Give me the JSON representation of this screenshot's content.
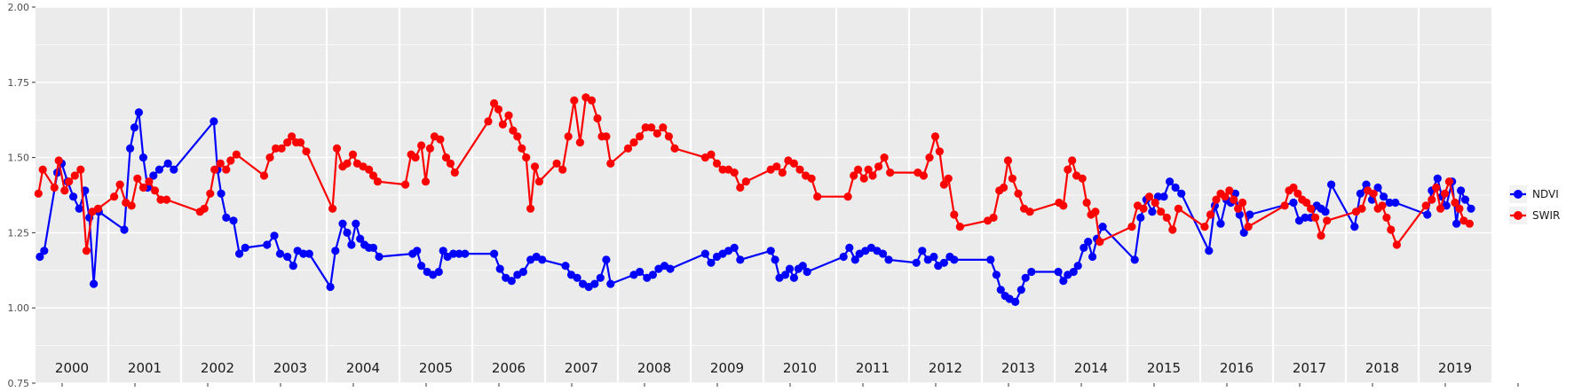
{
  "chart_data": {
    "type": "line",
    "title": "",
    "xlabel": "",
    "ylabel": "",
    "xlim": [
      2000,
      2020
    ],
    "ylim": [
      0.75,
      2.0
    ],
    "yticks": [
      0.75,
      1.0,
      1.25,
      1.5,
      1.75,
      2.0
    ],
    "ytick_labels": [
      "0.75",
      "1.00",
      "1.25",
      "1.50",
      "1.75",
      "2.00"
    ],
    "year_labels": [
      "2000",
      "2001",
      "2002",
      "2003",
      "2004",
      "2005",
      "2006",
      "2007",
      "2008",
      "2009",
      "2010",
      "2011",
      "2012",
      "2013",
      "2014",
      "2015",
      "2016",
      "2017",
      "2018",
      "2019"
    ],
    "grid": true,
    "legend_position": "right",
    "colors": {
      "NDVI": "#0000ff",
      "SWIR": "#ff0000",
      "panel_bg": "#ebebeb",
      "grid": "#ffffff"
    },
    "series": [
      {
        "name": "NDVI",
        "color": "#0000ff",
        "x": [
          2000.06,
          2000.12,
          2000.3,
          2000.36,
          2000.44,
          2000.52,
          2000.6,
          2000.68,
          2000.74,
          2000.8,
          2000.87,
          2001.22,
          2001.3,
          2001.36,
          2001.42,
          2001.48,
          2001.54,
          2001.62,
          2001.7,
          2001.82,
          2001.9,
          2002.45,
          2002.5,
          2002.55,
          2002.62,
          2002.72,
          2002.8,
          2002.88,
          2003.18,
          2003.28,
          2003.36,
          2003.46,
          2003.54,
          2003.6,
          2003.68,
          2003.76,
          2004.05,
          2004.12,
          2004.22,
          2004.28,
          2004.34,
          2004.4,
          2004.46,
          2004.52,
          2004.58,
          2004.64,
          2004.72,
          2005.18,
          2005.24,
          2005.3,
          2005.38,
          2005.46,
          2005.54,
          2005.6,
          2005.66,
          2005.74,
          2005.82,
          2005.9,
          2006.3,
          2006.38,
          2006.46,
          2006.54,
          2006.62,
          2006.7,
          2006.8,
          2006.88,
          2006.96,
          2007.28,
          2007.36,
          2007.44,
          2007.52,
          2007.6,
          2007.68,
          2007.76,
          2007.84,
          2007.9,
          2008.22,
          2008.3,
          2008.4,
          2008.48,
          2008.56,
          2008.64,
          2008.72,
          2009.2,
          2009.28,
          2009.36,
          2009.44,
          2009.52,
          2009.6,
          2009.68,
          2010.1,
          2010.16,
          2010.22,
          2010.3,
          2010.36,
          2010.42,
          2010.48,
          2010.54,
          2010.6,
          2011.1,
          2011.18,
          2011.26,
          2011.32,
          2011.4,
          2011.48,
          2011.56,
          2011.64,
          2011.72,
          2012.1,
          2012.18,
          2012.26,
          2012.34,
          2012.4,
          2012.48,
          2012.56,
          2012.62,
          2013.12,
          2013.2,
          2013.26,
          2013.32,
          2013.38,
          2013.46,
          2013.54,
          2013.6,
          2013.68,
          2014.05,
          2014.12,
          2014.18,
          2014.26,
          2014.32,
          2014.4,
          2014.46,
          2014.52,
          2014.58,
          2014.66,
          2015.1,
          2015.18,
          2015.26,
          2015.34,
          2015.42,
          2015.5,
          2015.58,
          2015.66,
          2015.74,
          2016.12,
          2016.2,
          2016.28,
          2016.36,
          2016.42,
          2016.48,
          2016.54,
          2016.6,
          2016.68,
          2017.28,
          2017.36,
          2017.44,
          2017.52,
          2017.6,
          2017.66,
          2017.72,
          2017.8,
          2018.12,
          2018.2,
          2018.28,
          2018.36,
          2018.44,
          2018.52,
          2018.6,
          2018.68,
          2019.12,
          2019.18,
          2019.26,
          2019.32,
          2019.38,
          2019.46,
          2019.52,
          2019.58,
          2019.64,
          2019.72
        ],
        "y": [
          1.17,
          1.19,
          1.45,
          1.48,
          1.42,
          1.37,
          1.33,
          1.39,
          1.3,
          1.08,
          1.32,
          1.26,
          1.53,
          1.6,
          1.65,
          1.5,
          1.4,
          1.44,
          1.46,
          1.48,
          1.46,
          1.62,
          1.46,
          1.38,
          1.3,
          1.29,
          1.18,
          1.2,
          1.21,
          1.24,
          1.18,
          1.17,
          1.14,
          1.19,
          1.18,
          1.18,
          1.07,
          1.19,
          1.28,
          1.25,
          1.21,
          1.28,
          1.23,
          1.21,
          1.2,
          1.2,
          1.17,
          1.18,
          1.19,
          1.14,
          1.12,
          1.11,
          1.12,
          1.19,
          1.17,
          1.18,
          1.18,
          1.18,
          1.18,
          1.13,
          1.1,
          1.09,
          1.11,
          1.12,
          1.16,
          1.17,
          1.16,
          1.14,
          1.11,
          1.1,
          1.08,
          1.07,
          1.08,
          1.1,
          1.16,
          1.08,
          1.11,
          1.12,
          1.1,
          1.11,
          1.13,
          1.14,
          1.13,
          1.18,
          1.15,
          1.17,
          1.18,
          1.19,
          1.2,
          1.16,
          1.19,
          1.16,
          1.1,
          1.11,
          1.13,
          1.1,
          1.13,
          1.14,
          1.12,
          1.17,
          1.2,
          1.16,
          1.18,
          1.19,
          1.2,
          1.19,
          1.18,
          1.16,
          1.15,
          1.19,
          1.16,
          1.17,
          1.14,
          1.15,
          1.17,
          1.16,
          1.16,
          1.11,
          1.06,
          1.04,
          1.03,
          1.02,
          1.06,
          1.1,
          1.12,
          1.12,
          1.09,
          1.11,
          1.12,
          1.14,
          1.2,
          1.22,
          1.17,
          1.23,
          1.27,
          1.16,
          1.3,
          1.36,
          1.32,
          1.37,
          1.37,
          1.42,
          1.4,
          1.38,
          1.19,
          1.34,
          1.28,
          1.36,
          1.35,
          1.38,
          1.31,
          1.25,
          1.31,
          1.35,
          1.29,
          1.3,
          1.3,
          1.34,
          1.33,
          1.32,
          1.41,
          1.27,
          1.38,
          1.41,
          1.36,
          1.4,
          1.37,
          1.35,
          1.35,
          1.31,
          1.39,
          1.43,
          1.37,
          1.34,
          1.42,
          1.28,
          1.39,
          1.36,
          1.33
        ]
      },
      {
        "name": "SWIR",
        "color": "#ff0000",
        "x": [
          2000.04,
          2000.1,
          2000.26,
          2000.32,
          2000.4,
          2000.46,
          2000.54,
          2000.62,
          2000.7,
          2000.78,
          2000.86,
          2001.08,
          2001.16,
          2001.24,
          2001.32,
          2001.4,
          2001.48,
          2001.56,
          2001.64,
          2001.72,
          2001.8,
          2002.26,
          2002.32,
          2002.4,
          2002.46,
          2002.54,
          2002.62,
          2002.68,
          2002.76,
          2003.14,
          2003.22,
          2003.3,
          2003.38,
          2003.46,
          2003.52,
          2003.58,
          2003.64,
          2003.72,
          2004.08,
          2004.14,
          2004.22,
          2004.28,
          2004.36,
          2004.42,
          2004.5,
          2004.58,
          2004.64,
          2004.7,
          2005.08,
          2005.16,
          2005.22,
          2005.3,
          2005.36,
          2005.42,
          2005.48,
          2005.56,
          2005.64,
          2005.7,
          2005.76,
          2006.22,
          2006.3,
          2006.36,
          2006.42,
          2006.5,
          2006.56,
          2006.62,
          2006.68,
          2006.74,
          2006.8,
          2006.86,
          2006.92,
          2007.16,
          2007.24,
          2007.32,
          2007.4,
          2007.48,
          2007.56,
          2007.64,
          2007.72,
          2007.78,
          2007.84,
          2007.9,
          2008.14,
          2008.22,
          2008.3,
          2008.38,
          2008.46,
          2008.54,
          2008.62,
          2008.7,
          2008.78,
          2009.2,
          2009.28,
          2009.36,
          2009.44,
          2009.52,
          2009.6,
          2009.68,
          2009.76,
          2010.1,
          2010.18,
          2010.26,
          2010.34,
          2010.42,
          2010.5,
          2010.58,
          2010.66,
          2010.74,
          2011.16,
          2011.24,
          2011.3,
          2011.38,
          2011.44,
          2011.5,
          2011.58,
          2011.66,
          2011.74,
          2012.12,
          2012.2,
          2012.28,
          2012.36,
          2012.42,
          2012.48,
          2012.54,
          2012.62,
          2012.7,
          2013.08,
          2013.16,
          2013.24,
          2013.3,
          2013.36,
          2013.42,
          2013.5,
          2013.58,
          2013.66,
          2014.06,
          2014.12,
          2014.18,
          2014.24,
          2014.3,
          2014.38,
          2014.44,
          2014.5,
          2014.56,
          2014.62,
          2015.06,
          2015.14,
          2015.22,
          2015.3,
          2015.38,
          2015.46,
          2015.54,
          2015.62,
          2015.7,
          2016.06,
          2016.14,
          2016.22,
          2016.28,
          2016.34,
          2016.4,
          2016.46,
          2016.52,
          2016.58,
          2016.66,
          2017.16,
          2017.22,
          2017.28,
          2017.34,
          2017.4,
          2017.46,
          2017.52,
          2017.58,
          2017.66,
          2017.74,
          2018.14,
          2018.22,
          2018.3,
          2018.38,
          2018.44,
          2018.5,
          2018.56,
          2018.62,
          2018.7,
          2019.1,
          2019.18,
          2019.24,
          2019.3,
          2019.36,
          2019.42,
          2019.5,
          2019.56,
          2019.62,
          2019.7
        ],
        "y": [
          1.38,
          1.46,
          1.4,
          1.49,
          1.39,
          1.42,
          1.44,
          1.46,
          1.19,
          1.32,
          1.33,
          1.37,
          1.41,
          1.35,
          1.34,
          1.43,
          1.4,
          1.42,
          1.39,
          1.36,
          1.36,
          1.32,
          1.33,
          1.38,
          1.46,
          1.48,
          1.46,
          1.49,
          1.51,
          1.44,
          1.5,
          1.53,
          1.53,
          1.55,
          1.57,
          1.55,
          1.55,
          1.52,
          1.33,
          1.53,
          1.47,
          1.48,
          1.51,
          1.48,
          1.47,
          1.46,
          1.44,
          1.42,
          1.41,
          1.51,
          1.5,
          1.54,
          1.42,
          1.53,
          1.57,
          1.56,
          1.5,
          1.48,
          1.45,
          1.62,
          1.68,
          1.66,
          1.61,
          1.64,
          1.59,
          1.57,
          1.53,
          1.5,
          1.33,
          1.47,
          1.42,
          1.48,
          1.46,
          1.57,
          1.69,
          1.55,
          1.7,
          1.69,
          1.63,
          1.57,
          1.57,
          1.48,
          1.53,
          1.55,
          1.57,
          1.6,
          1.6,
          1.58,
          1.6,
          1.57,
          1.53,
          1.5,
          1.51,
          1.48,
          1.46,
          1.46,
          1.45,
          1.4,
          1.42,
          1.46,
          1.47,
          1.45,
          1.49,
          1.48,
          1.46,
          1.44,
          1.43,
          1.37,
          1.37,
          1.44,
          1.46,
          1.43,
          1.46,
          1.44,
          1.47,
          1.5,
          1.45,
          1.45,
          1.44,
          1.5,
          1.57,
          1.52,
          1.41,
          1.43,
          1.31,
          1.27,
          1.29,
          1.3,
          1.39,
          1.4,
          1.49,
          1.43,
          1.38,
          1.33,
          1.32,
          1.35,
          1.34,
          1.46,
          1.49,
          1.44,
          1.43,
          1.35,
          1.31,
          1.32,
          1.22,
          1.27,
          1.34,
          1.33,
          1.37,
          1.35,
          1.32,
          1.3,
          1.26,
          1.33,
          1.27,
          1.31,
          1.36,
          1.38,
          1.37,
          1.39,
          1.36,
          1.33,
          1.35,
          1.27,
          1.34,
          1.39,
          1.4,
          1.38,
          1.36,
          1.35,
          1.33,
          1.3,
          1.24,
          1.29,
          1.32,
          1.33,
          1.39,
          1.38,
          1.33,
          1.34,
          1.3,
          1.26,
          1.21,
          1.34,
          1.36,
          1.4,
          1.33,
          1.38,
          1.42,
          1.35,
          1.33,
          1.29,
          1.28
        ]
      }
    ]
  }
}
